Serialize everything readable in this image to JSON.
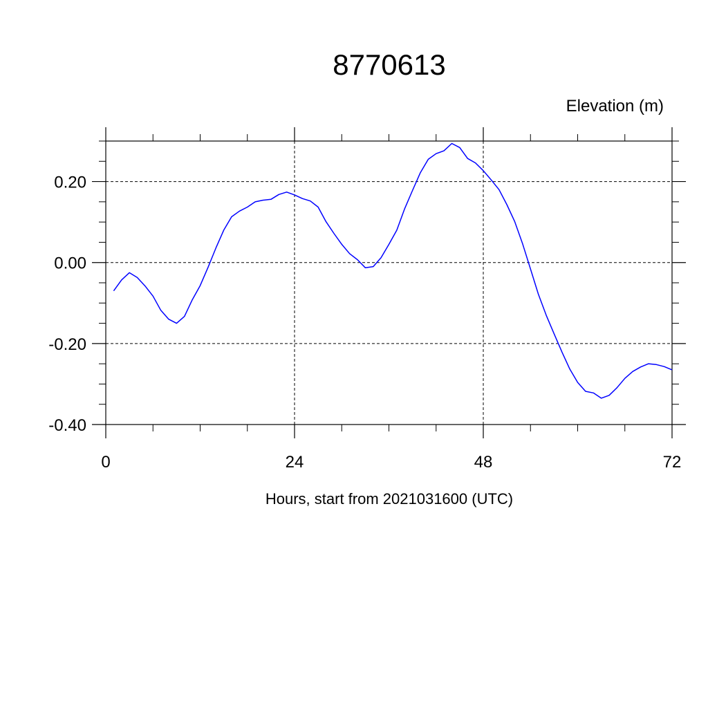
{
  "chart_data": {
    "type": "line",
    "title": "8770613",
    "ylabel": "Elevation (m)",
    "xlabel": "Hours, start from 2021031600 (UTC)",
    "xlim": [
      0,
      72
    ],
    "ylim": [
      -0.4,
      0.3
    ],
    "grid": true,
    "x_ticks": [
      0,
      24,
      48,
      72
    ],
    "x_tick_labels": [
      "0",
      "24",
      "48",
      "72"
    ],
    "y_ticks": [
      0.2,
      0.0,
      -0.2,
      -0.4
    ],
    "y_tick_labels": [
      "0.20",
      "0.00",
      "-0.20",
      "-0.40"
    ],
    "series": [
      {
        "color": "#0000ff",
        "x": [
          1,
          2,
          3,
          4,
          5,
          6,
          7,
          8,
          9,
          10,
          11,
          12,
          13,
          14,
          15,
          16,
          17,
          18,
          19,
          20,
          21,
          22,
          23,
          24,
          25,
          26,
          27,
          28,
          29,
          30,
          31,
          32,
          33,
          34,
          35,
          36,
          37,
          38,
          39,
          40,
          41,
          42,
          43,
          44,
          45,
          46,
          47,
          48,
          49,
          50,
          51,
          52,
          53,
          54,
          55,
          56,
          57,
          58,
          59,
          60,
          61,
          62,
          63,
          64,
          65,
          66,
          67,
          68,
          69,
          70,
          71,
          72
        ],
        "y": [
          -0.07,
          -0.043,
          -0.025,
          -0.037,
          -0.058,
          -0.083,
          -0.118,
          -0.14,
          -0.15,
          -0.133,
          -0.092,
          -0.057,
          -0.012,
          0.036,
          0.08,
          0.113,
          0.127,
          0.137,
          0.15,
          0.154,
          0.156,
          0.168,
          0.174,
          0.167,
          0.158,
          0.152,
          0.137,
          0.101,
          0.072,
          0.045,
          0.022,
          0.007,
          -0.013,
          -0.01,
          0.012,
          0.045,
          0.08,
          0.133,
          0.178,
          0.222,
          0.255,
          0.269,
          0.276,
          0.294,
          0.284,
          0.257,
          0.246,
          0.227,
          0.204,
          0.18,
          0.143,
          0.101,
          0.046,
          -0.016,
          -0.078,
          -0.13,
          -0.176,
          -0.221,
          -0.263,
          -0.296,
          -0.318,
          -0.322,
          -0.335,
          -0.328,
          -0.309,
          -0.286,
          -0.269,
          -0.258,
          -0.25,
          -0.252,
          -0.257,
          -0.265
        ]
      }
    ]
  }
}
